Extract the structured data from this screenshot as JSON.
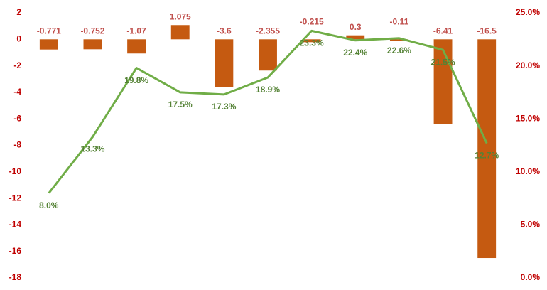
{
  "chart_data": {
    "type": "combo",
    "categories": [
      null,
      null,
      null,
      null,
      null,
      null,
      null,
      null,
      null,
      null,
      null
    ],
    "series": [
      {
        "type": "bar",
        "color": "#c55a11",
        "label_color": "#c0504d",
        "values": [
          -0.771,
          -0.752,
          -1.07,
          1.075,
          -3.6,
          -2.355,
          -0.215,
          0.3,
          -0.11,
          -6.41,
          -16.5
        ]
      },
      {
        "type": "line",
        "axis": "y2",
        "color": "#70ad47",
        "label_color": "#548235",
        "values": [
          8.0,
          13.3,
          19.8,
          17.5,
          17.3,
          18.9,
          23.3,
          22.4,
          22.6,
          21.5,
          12.7
        ],
        "value_labels": [
          "8.0%",
          "13.3%",
          "19.8%",
          "17.5%",
          "17.3%",
          "18.9%",
          "23.3%",
          "22.4%",
          "22.6%",
          "21.5%",
          "12.7%"
        ]
      }
    ],
    "ylim": [
      -18,
      2
    ],
    "yticks": [
      2,
      0,
      -2,
      -4,
      -6,
      -8,
      -10,
      -12,
      -14,
      -16,
      -18
    ],
    "y2lim": [
      0,
      25
    ],
    "y2ticks": [
      {
        "value": 25,
        "label": "25.0%"
      },
      {
        "value": 20,
        "label": "20.0%"
      },
      {
        "value": 15,
        "label": "15.0%"
      },
      {
        "value": 10,
        "label": "10.0%"
      },
      {
        "value": 5,
        "label": "5.0%"
      },
      {
        "value": 0,
        "label": "0.0%"
      }
    ],
    "axis_label_color": "#c00000"
  }
}
